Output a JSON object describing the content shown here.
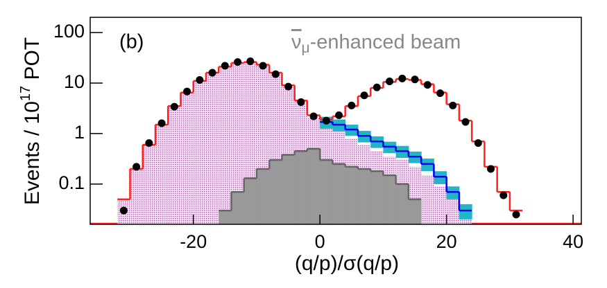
{
  "chart_data": {
    "type": "histogram",
    "xlabel": "(q/p)/σ(q/p)",
    "ylabel": [
      "Events / 10",
      "17",
      " POT"
    ],
    "annotations": [
      "(b)"
    ],
    "beam_label": [
      "ν",
      "μ",
      "-enhanced beam"
    ],
    "xlim": [
      -36.3,
      41.3
    ],
    "ylim": [
      0.016,
      200
    ],
    "log_y": true,
    "xticks": [
      -20,
      0,
      20,
      40
    ],
    "yticks": [
      0.1,
      1,
      10,
      100
    ],
    "bins": [
      -34,
      -32,
      -30,
      -28,
      -26,
      -24,
      -22,
      -20,
      -18,
      -16,
      -14,
      -12,
      -10,
      -8,
      -6,
      -4,
      -2,
      0,
      2,
      4,
      6,
      8,
      10,
      12,
      14,
      16,
      18,
      20,
      22,
      24,
      26,
      28,
      30,
      32,
      34
    ],
    "series": [
      {
        "style": "hatched",
        "color": "#c04fc0",
        "values": [
          null,
          0.05,
          0.2,
          0.6,
          1.5,
          3.5,
          6.5,
          11,
          16,
          21,
          25,
          26,
          23,
          16,
          9,
          4.4,
          2.1,
          1.5,
          1.1,
          0.8,
          0.6,
          0.45,
          0.35,
          0.3,
          0.22,
          0.15,
          0.09,
          0.05,
          0.025,
          null,
          null,
          null,
          null,
          null
        ]
      },
      {
        "style": "filled",
        "color": "#999999",
        "values": [
          null,
          null,
          null,
          null,
          null,
          null,
          null,
          null,
          null,
          0.03,
          0.07,
          0.13,
          0.2,
          0.3,
          0.38,
          0.45,
          0.5,
          0.3,
          0.25,
          0.22,
          0.2,
          0.18,
          0.15,
          0.1,
          0.05,
          null,
          null,
          null,
          null,
          null,
          null,
          null,
          null,
          null
        ]
      },
      {
        "style": "step",
        "color": "#0000ee",
        "band_color": "#22b5c8",
        "values": [
          null,
          null,
          null,
          null,
          null,
          null,
          null,
          null,
          null,
          null,
          null,
          null,
          null,
          null,
          null,
          null,
          null,
          1.7,
          1.5,
          1.2,
          0.9,
          0.7,
          0.55,
          0.45,
          0.35,
          0.25,
          0.14,
          0.07,
          0.03,
          null,
          null,
          null,
          null,
          null
        ],
        "errors": [
          null,
          null,
          null,
          null,
          null,
          null,
          null,
          null,
          null,
          null,
          null,
          null,
          null,
          null,
          null,
          null,
          null,
          0.45,
          0.4,
          0.3,
          0.23,
          0.18,
          0.14,
          0.12,
          0.09,
          0.07,
          0.04,
          0.02,
          0.01,
          null,
          null,
          null,
          null,
          null
        ]
      },
      {
        "style": "step",
        "color": "#ff2020",
        "values": [
          null,
          0.05,
          0.2,
          0.6,
          1.5,
          3.5,
          6.5,
          11,
          16,
          21,
          25,
          26,
          23,
          16,
          9,
          4.5,
          2.3,
          1.9,
          2.2,
          3.5,
          5.5,
          8,
          10.5,
          12,
          11.5,
          9.5,
          6.5,
          3.8,
          1.8,
          0.7,
          0.22,
          0.07,
          0.03,
          null
        ]
      },
      {
        "style": "points",
        "color": "#000000",
        "values": [
          null,
          0.03,
          0.22,
          0.65,
          1.6,
          3.4,
          6.8,
          11.5,
          16,
          22,
          26,
          27,
          22,
          15,
          8.5,
          4.2,
          2.2,
          1.8,
          2.3,
          3.6,
          5.7,
          8.2,
          10.8,
          12.3,
          11.8,
          9.2,
          6.3,
          3.6,
          1.7,
          0.65,
          0.2,
          0.06,
          0.025,
          null
        ]
      }
    ]
  }
}
